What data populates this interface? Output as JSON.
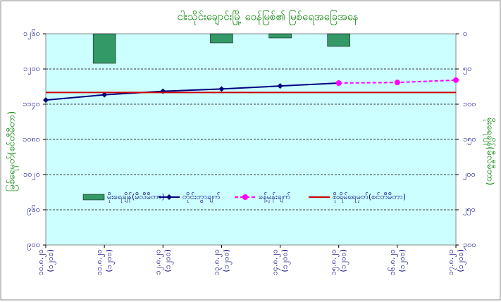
{
  "chart_data": {
    "type": "combo",
    "title": "ငါးသိုင်းချောင်းမြို့ ဝေန်မြစ်၏ မြစ်ရေအခြေအနေ",
    "ylabel": "မြစ်ရေမှတ်(စင်တီမီတာ)",
    "y2label": "မိုးရေချိန်(မီလီမီတာ)",
    "categories": [
      [
        "၁၀.၈.၂၀",
        "(၁၂၀၀)"
      ],
      [
        "၁၁.၈.၂၀",
        "(၁၂၀၀)"
      ],
      [
        "၁၂.၈.၂၀",
        "(၁၂၀၀)"
      ],
      [
        "၁၃.၈.၂၀",
        "(၁၂၀၀)"
      ],
      [
        "၁၄.၈.၂၀",
        "(၁၂၀၀)"
      ],
      [
        "၁၅.၈.၂၀",
        "(၁၂၀၀)"
      ],
      [
        "၁၆.၈.၂၀",
        "(၁၂၀၀)"
      ],
      [
        "၁၇.၈.၂၀",
        "(၁၂၀၀)"
      ]
    ],
    "ylim": [
      900,
      1260
    ],
    "yticks": [
      {
        "value": 900,
        "label": "၉၀၀"
      },
      {
        "value": 960,
        "label": "၉၆၀"
      },
      {
        "value": 1020,
        "label": "၁၀၂၀"
      },
      {
        "value": 1080,
        "label": "၁၀၈၀"
      },
      {
        "value": 1140,
        "label": "၁၁၄၀"
      },
      {
        "value": 1200,
        "label": "၁၂၀၀"
      },
      {
        "value": 1260,
        "label": "၁၂၆၀"
      }
    ],
    "y2lim": [
      300,
      0
    ],
    "y2ticks": [
      {
        "value": 0,
        "label": "၀"
      },
      {
        "value": 50,
        "label": "၅၀"
      },
      {
        "value": 100,
        "label": "၁၀၀"
      },
      {
        "value": 150,
        "label": "၁၅၀"
      },
      {
        "value": 200,
        "label": "၂၀၀"
      },
      {
        "value": 250,
        "label": "၂၅၀"
      },
      {
        "value": 300,
        "label": "၃၀၀"
      }
    ],
    "grid": true,
    "series": [
      {
        "name": "မိုးရေချိန်(မီလီမီတာ)",
        "type": "bar",
        "axis": "y2",
        "color": "#339966",
        "values": [
          0,
          42,
          0,
          13,
          6,
          18,
          null,
          null
        ]
      },
      {
        "name": "တိုင်းတွာချက်",
        "type": "line",
        "color": "#000080",
        "values": [
          1147,
          1156,
          1162,
          1166,
          1171,
          1176,
          null,
          null
        ]
      },
      {
        "name": "ခန့်မှန်းချက်",
        "type": "dashed",
        "color": "#ff00ff",
        "values": [
          null,
          null,
          null,
          null,
          null,
          1176,
          1177,
          1181
        ]
      },
      {
        "name": "စိုးရိမ်ရေမှတ်(စင်တီမီတာ)",
        "type": "level",
        "color": "#cc0000",
        "values": [
          1160,
          1160,
          1160,
          1160,
          1160,
          1160,
          1160,
          1160
        ]
      }
    ]
  }
}
